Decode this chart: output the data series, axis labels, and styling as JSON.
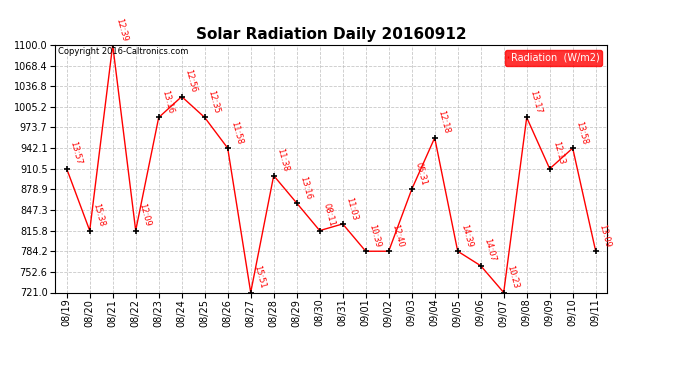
{
  "title": "Solar Radiation Daily 20160912",
  "copyright": "Copyright 2016-Caltronics.com",
  "legend_label": "Radiation  (W/m2)",
  "x_labels": [
    "08/19",
    "08/20",
    "08/21",
    "08/22",
    "08/23",
    "08/24",
    "08/25",
    "08/26",
    "08/27",
    "08/28",
    "08/29",
    "08/30",
    "08/31",
    "09/01",
    "09/02",
    "09/03",
    "09/04",
    "09/05",
    "09/06",
    "09/07",
    "09/08",
    "09/09",
    "09/10",
    "09/11"
  ],
  "y_values": [
    910.5,
    815.8,
    1100.0,
    815.8,
    989.0,
    1021.0,
    989.0,
    942.1,
    721.0,
    900.0,
    858.0,
    815.8,
    826.0,
    784.2,
    784.2,
    878.9,
    957.9,
    784.2,
    762.0,
    721.0,
    989.0,
    910.5,
    942.1,
    784.2
  ],
  "annotations": [
    "13:57",
    "15:38",
    "12:39",
    "12:09",
    "13:16",
    "12:56",
    "12:35",
    "11:58",
    "15:51",
    "11:38",
    "13:16",
    "08:11",
    "11:03",
    "10:39",
    "12:40",
    "05:31",
    "12:18",
    "14:39",
    "14:07",
    "10:23",
    "13:17",
    "12:13",
    "13:58",
    "13:09"
  ],
  "ylim": [
    721.0,
    1100.0
  ],
  "yticks": [
    721.0,
    752.6,
    784.2,
    815.8,
    847.3,
    878.9,
    910.5,
    942.1,
    973.7,
    1005.2,
    1036.8,
    1068.4,
    1100.0
  ],
  "line_color": "#ff0000",
  "marker_color": "#000000",
  "bg_color": "#ffffff",
  "grid_color": "#bbbbbb",
  "title_fontsize": 11,
  "annotation_color": "#ff0000",
  "legend_bg": "#ff0000",
  "legend_text_color": "#ffffff",
  "figwidth": 6.9,
  "figheight": 3.75,
  "dpi": 100
}
